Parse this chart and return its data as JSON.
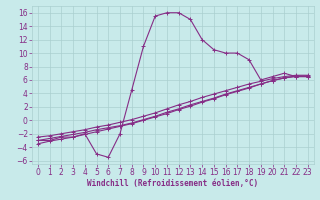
{
  "x": [
    0,
    1,
    2,
    3,
    4,
    5,
    6,
    7,
    8,
    9,
    10,
    11,
    12,
    13,
    14,
    15,
    16,
    17,
    18,
    19,
    20,
    21,
    22,
    23
  ],
  "line1": [
    -3,
    -3,
    -2.5,
    -2.5,
    -2,
    -5,
    -5.5,
    -2,
    4.5,
    11,
    15.5,
    16,
    16,
    15,
    12,
    10.5,
    10,
    10,
    9,
    6,
    6.5,
    7,
    6.5,
    6.5
  ],
  "line2": [
    -3.0,
    -2.7,
    -2.4,
    -2.1,
    -1.8,
    -1.4,
    -1.1,
    -0.8,
    -0.4,
    0.1,
    0.6,
    1.2,
    1.7,
    2.3,
    2.8,
    3.3,
    3.9,
    4.4,
    4.9,
    5.4,
    5.9,
    6.3,
    6.5,
    6.5
  ],
  "line3": [
    -3.5,
    -3.1,
    -2.8,
    -2.5,
    -2.1,
    -1.7,
    -1.3,
    -0.9,
    -0.5,
    0.0,
    0.5,
    1.0,
    1.6,
    2.1,
    2.7,
    3.2,
    3.8,
    4.3,
    4.8,
    5.4,
    5.9,
    6.3,
    6.6,
    6.6
  ],
  "line4": [
    -2.5,
    -2.3,
    -2.0,
    -1.7,
    -1.4,
    -1.0,
    -0.7,
    -0.3,
    0.1,
    0.6,
    1.1,
    1.7,
    2.3,
    2.8,
    3.4,
    3.9,
    4.4,
    4.9,
    5.4,
    5.8,
    6.2,
    6.5,
    6.7,
    6.7
  ],
  "xlim": [
    -0.5,
    23.5
  ],
  "ylim": [
    -6.5,
    17
  ],
  "yticks": [
    -6,
    -4,
    -2,
    0,
    2,
    4,
    6,
    8,
    10,
    12,
    14,
    16
  ],
  "xticks": [
    0,
    1,
    2,
    3,
    4,
    5,
    6,
    7,
    8,
    9,
    10,
    11,
    12,
    13,
    14,
    15,
    16,
    17,
    18,
    19,
    20,
    21,
    22,
    23
  ],
  "color": "#862d86",
  "bg_color": "#c8eaea",
  "grid_color": "#aacfcf",
  "xlabel": "Windchill (Refroidissement éolien,°C)",
  "xlabel_fontsize": 5.5,
  "tick_fontsize": 5.5,
  "marker": "+",
  "linewidth": 0.8,
  "markersize": 3.5
}
